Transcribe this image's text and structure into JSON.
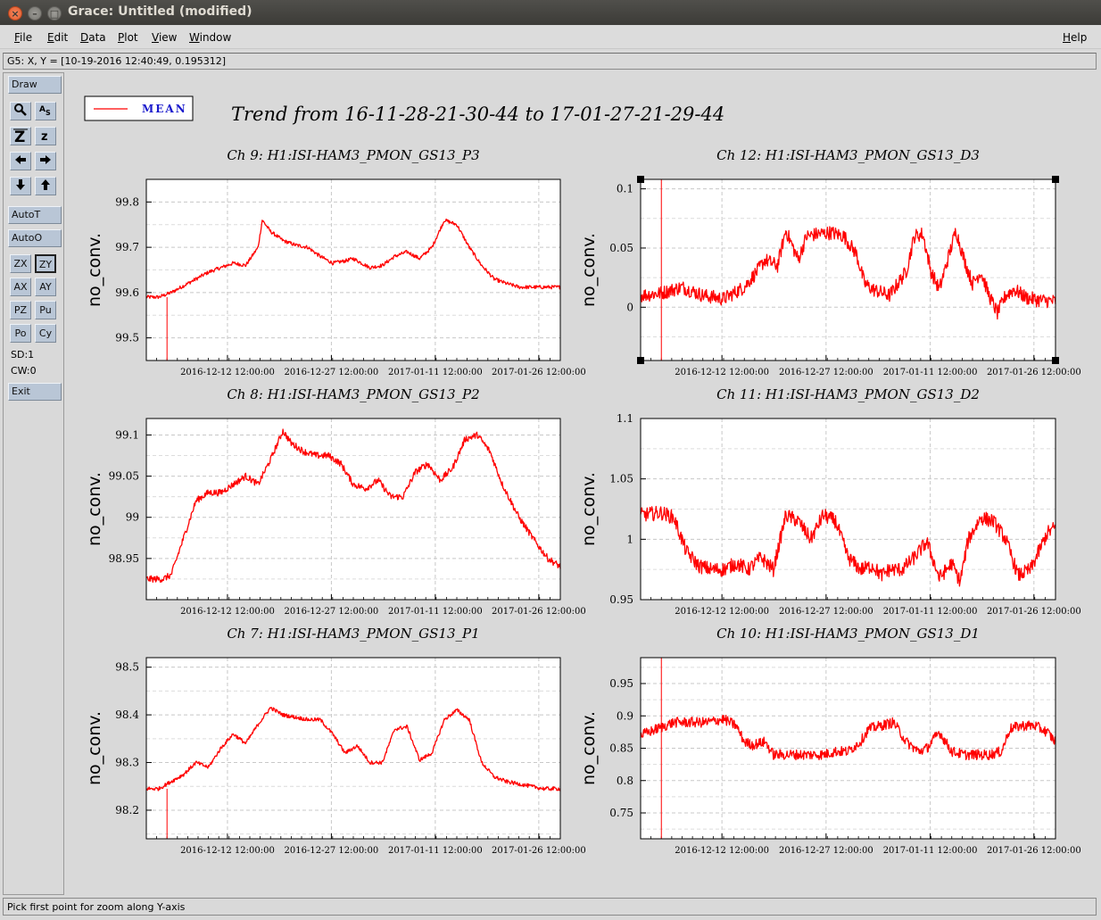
{
  "window": {
    "title": "Grace: Untitled (modified)"
  },
  "menubar": {
    "items": [
      {
        "label": "File",
        "mnemonic": "F",
        "rest": "ile"
      },
      {
        "label": "Edit",
        "mnemonic": "E",
        "rest": "dit"
      },
      {
        "label": "Data",
        "mnemonic": "D",
        "rest": "ata"
      },
      {
        "label": "Plot",
        "mnemonic": "P",
        "rest": "lot"
      },
      {
        "label": "View",
        "mnemonic": "V",
        "rest": "iew"
      },
      {
        "label": "Window",
        "mnemonic": "W",
        "rest": "indow"
      }
    ],
    "help": {
      "label": "Help",
      "mnemonic": "H",
      "rest": "elp"
    }
  },
  "locator": "G5: X, Y = [10-19-2016 12:40:49, 0.195312]",
  "toolbar": {
    "draw": "Draw",
    "autot": "AutoT",
    "autoo": "AutoO",
    "zx": "ZX",
    "zy": "ZY",
    "ax": "AX",
    "ay": "AY",
    "pz": "PZ",
    "pu": "Pu",
    "po": "Po",
    "cy": "Cy",
    "sd": "SD:1",
    "cw": "CW:0",
    "exit": "Exit",
    "icons": [
      "zoom-icon",
      "autoscale-text-icon",
      "zoom-in-icon",
      "zoom-out-icon",
      "arrow-left-icon",
      "arrow-right-icon",
      "arrow-down-icon",
      "arrow-up-icon"
    ]
  },
  "status": "Pick first point for zoom along Y-axis",
  "legend": {
    "label": "MEAN"
  },
  "main_title": "Trend from 16-11-28-21-30-44 to 17-01-27-21-29-44",
  "colors": {
    "series": "#ff0000",
    "legend_text": "#1a1acc",
    "grid": "#c8c8c8"
  },
  "chart_data": [
    {
      "type": "line",
      "title": "Ch 9: H1:ISI-HAM3_PMON_GS13_P3",
      "ylabel": "no_conv.",
      "x_ticks": [
        "2016-12-12 12:00:00",
        "2016-12-27 12:00:00",
        "2017-01-11 12:00:00",
        "2017-01-26 12:00:00"
      ],
      "y_ticks": [
        "99.5",
        "99.6",
        "99.7",
        "99.8"
      ],
      "ylim": [
        99.45,
        99.85
      ],
      "series": [
        {
          "name": "MEAN",
          "x": [
            0,
            3,
            6,
            9,
            12,
            15,
            18,
            21,
            24,
            27,
            28,
            30,
            33,
            36,
            39,
            42,
            45,
            48,
            50,
            52,
            54,
            57,
            60,
            63,
            66,
            69,
            72,
            75,
            78,
            81,
            84,
            87,
            89,
            90,
            92,
            95,
            98,
            100
          ],
          "values": [
            99.59,
            99.59,
            99.6,
            99.615,
            99.63,
            99.645,
            99.655,
            99.665,
            99.66,
            99.7,
            99.76,
            99.735,
            99.715,
            99.705,
            99.7,
            99.68,
            99.665,
            99.67,
            99.675,
            99.665,
            99.655,
            99.66,
            99.68,
            99.69,
            99.675,
            99.7,
            99.76,
            99.75,
            99.7,
            99.66,
            99.63,
            99.62,
            99.615,
            99.612,
            99.612,
            99.612,
            99.612,
            99.612
          ],
          "noise": 0.004
        }
      ]
    },
    {
      "type": "line",
      "title": "Ch 12: H1:ISI-HAM3_PMON_GS13_D3",
      "ylabel": "no_conv.",
      "x_ticks": [
        "2016-12-12 12:00:00",
        "2016-12-27 12:00:00",
        "2017-01-11 12:00:00",
        "2017-01-26 12:00:00"
      ],
      "y_ticks": [
        "0",
        "0.05",
        "0.1"
      ],
      "ylim": [
        -0.045,
        0.108
      ],
      "series": [
        {
          "name": "MEAN",
          "x": [
            0,
            5,
            10,
            15,
            20,
            25,
            28,
            30,
            33,
            35,
            38,
            40,
            43,
            46,
            49,
            52,
            54,
            56,
            60,
            64,
            66,
            68,
            70,
            72,
            74,
            76,
            78,
            80,
            82,
            84,
            86,
            88,
            90,
            93,
            96,
            100
          ],
          "values": [
            0.01,
            0.012,
            0.017,
            0.01,
            0.007,
            0.017,
            0.03,
            0.04,
            0.035,
            0.065,
            0.04,
            0.06,
            0.062,
            0.063,
            0.06,
            0.045,
            0.02,
            0.015,
            0.01,
            0.03,
            0.06,
            0.062,
            0.03,
            0.015,
            0.04,
            0.065,
            0.04,
            0.02,
            0.03,
            0.01,
            -0.005,
            0.01,
            0.015,
            0.008,
            0.006,
            0.005
          ],
          "noise": 0.006
        }
      ]
    },
    {
      "type": "line",
      "title": "Ch 8: H1:ISI-HAM3_PMON_GS13_P2",
      "ylabel": "no_conv.",
      "x_ticks": [
        "2016-12-12 12:00:00",
        "2016-12-27 12:00:00",
        "2017-01-11 12:00:00",
        "2017-01-26 12:00:00"
      ],
      "y_ticks": [
        "98.95",
        "99",
        "99.05",
        "99.1"
      ],
      "ylim": [
        98.9,
        99.12
      ],
      "series": [
        {
          "name": "MEAN",
          "x": [
            0,
            4,
            6,
            8,
            10,
            12,
            15,
            18,
            21,
            24,
            27,
            30,
            33,
            35,
            38,
            41,
            44,
            47,
            50,
            53,
            56,
            59,
            62,
            65,
            68,
            71,
            74,
            77,
            80,
            83,
            86,
            90,
            94,
            97,
            100
          ],
          "values": [
            98.925,
            98.925,
            98.93,
            98.96,
            98.99,
            99.02,
            99.03,
            99.03,
            99.04,
            99.05,
            99.04,
            99.07,
            99.105,
            99.09,
            99.08,
            99.075,
            99.075,
            99.065,
            99.04,
            99.035,
            99.045,
            99.025,
            99.025,
            99.055,
            99.065,
            99.045,
            99.06,
            99.095,
            99.1,
            99.08,
            99.04,
            99.0,
            98.97,
            98.95,
            98.94
          ],
          "noise": 0.004
        }
      ]
    },
    {
      "type": "line",
      "title": "Ch 11: H1:ISI-HAM3_PMON_GS13_D2",
      "ylabel": "no_conv.",
      "x_ticks": [
        "2016-12-12 12:00:00",
        "2016-12-27 12:00:00",
        "2017-01-11 12:00:00",
        "2017-01-26 12:00:00"
      ],
      "y_ticks": [
        "0.95",
        "1",
        "1.05",
        "1.1"
      ],
      "ylim": [
        0.95,
        1.1
      ],
      "series": [
        {
          "name": "MEAN",
          "x": [
            0,
            5,
            8,
            11,
            14,
            17,
            20,
            23,
            26,
            29,
            32,
            35,
            38,
            41,
            44,
            47,
            50,
            53,
            56,
            58,
            60,
            63,
            66,
            69,
            72,
            75,
            77,
            79,
            82,
            85,
            88,
            91,
            94,
            96,
            98,
            100
          ],
          "values": [
            1.02,
            1.022,
            1.018,
            0.99,
            0.978,
            0.975,
            0.975,
            0.98,
            0.975,
            0.985,
            0.975,
            1.02,
            1.015,
            1.0,
            1.02,
            1.015,
            0.985,
            0.975,
            0.978,
            0.97,
            0.975,
            0.975,
            0.985,
            0.998,
            0.968,
            0.98,
            0.965,
            1.0,
            1.018,
            1.015,
            1.0,
            0.97,
            0.975,
            0.99,
            1.005,
            1.01
          ],
          "noise": 0.006
        }
      ]
    },
    {
      "type": "line",
      "title": "Ch 7: H1:ISI-HAM3_PMON_GS13_P1",
      "ylabel": "no_conv.",
      "x_ticks": [
        "2016-12-12 12:00:00",
        "2016-12-27 12:00:00",
        "2017-01-11 12:00:00",
        "2017-01-26 12:00:00"
      ],
      "y_ticks": [
        "98.2",
        "98.3",
        "98.4",
        "98.5"
      ],
      "ylim": [
        98.14,
        98.52
      ],
      "series": [
        {
          "name": "MEAN",
          "x": [
            0,
            3,
            6,
            9,
            12,
            15,
            18,
            21,
            24,
            27,
            30,
            33,
            36,
            39,
            42,
            45,
            48,
            51,
            54,
            57,
            60,
            63,
            66,
            69,
            72,
            75,
            78,
            81,
            84,
            87,
            90,
            93,
            96,
            100
          ],
          "values": [
            98.245,
            98.245,
            98.26,
            98.275,
            98.3,
            98.29,
            98.33,
            98.36,
            98.34,
            98.38,
            98.415,
            98.4,
            98.395,
            98.39,
            98.39,
            98.36,
            98.32,
            98.335,
            98.3,
            98.3,
            98.37,
            98.375,
            98.305,
            98.32,
            98.39,
            98.41,
            98.39,
            98.3,
            98.27,
            98.26,
            98.255,
            98.25,
            98.245,
            98.245
          ],
          "noise": 0.004
        }
      ]
    },
    {
      "type": "line",
      "title": "Ch 10: H1:ISI-HAM3_PMON_GS13_D1",
      "ylabel": "no_conv.",
      "x_ticks": [
        "2016-12-12 12:00:00",
        "2016-12-27 12:00:00",
        "2017-01-11 12:00:00",
        "2017-01-26 12:00:00"
      ],
      "y_ticks": [
        "0.75",
        "0.8",
        "0.85",
        "0.9",
        "0.95"
      ],
      "ylim": [
        0.71,
        0.99
      ],
      "series": [
        {
          "name": "MEAN",
          "x": [
            0,
            4,
            8,
            12,
            16,
            20,
            23,
            25,
            27,
            30,
            32,
            35,
            38,
            41,
            44,
            47,
            50,
            53,
            55,
            58,
            61,
            64,
            67,
            69,
            72,
            75,
            78,
            81,
            84,
            87,
            89,
            92,
            95,
            98,
            100
          ],
          "values": [
            0.87,
            0.88,
            0.89,
            0.89,
            0.89,
            0.895,
            0.885,
            0.86,
            0.855,
            0.86,
            0.84,
            0.84,
            0.84,
            0.84,
            0.84,
            0.845,
            0.845,
            0.86,
            0.88,
            0.885,
            0.89,
            0.86,
            0.845,
            0.85,
            0.875,
            0.845,
            0.84,
            0.84,
            0.84,
            0.845,
            0.88,
            0.885,
            0.885,
            0.875,
            0.86
          ],
          "noise": 0.008
        }
      ]
    }
  ]
}
